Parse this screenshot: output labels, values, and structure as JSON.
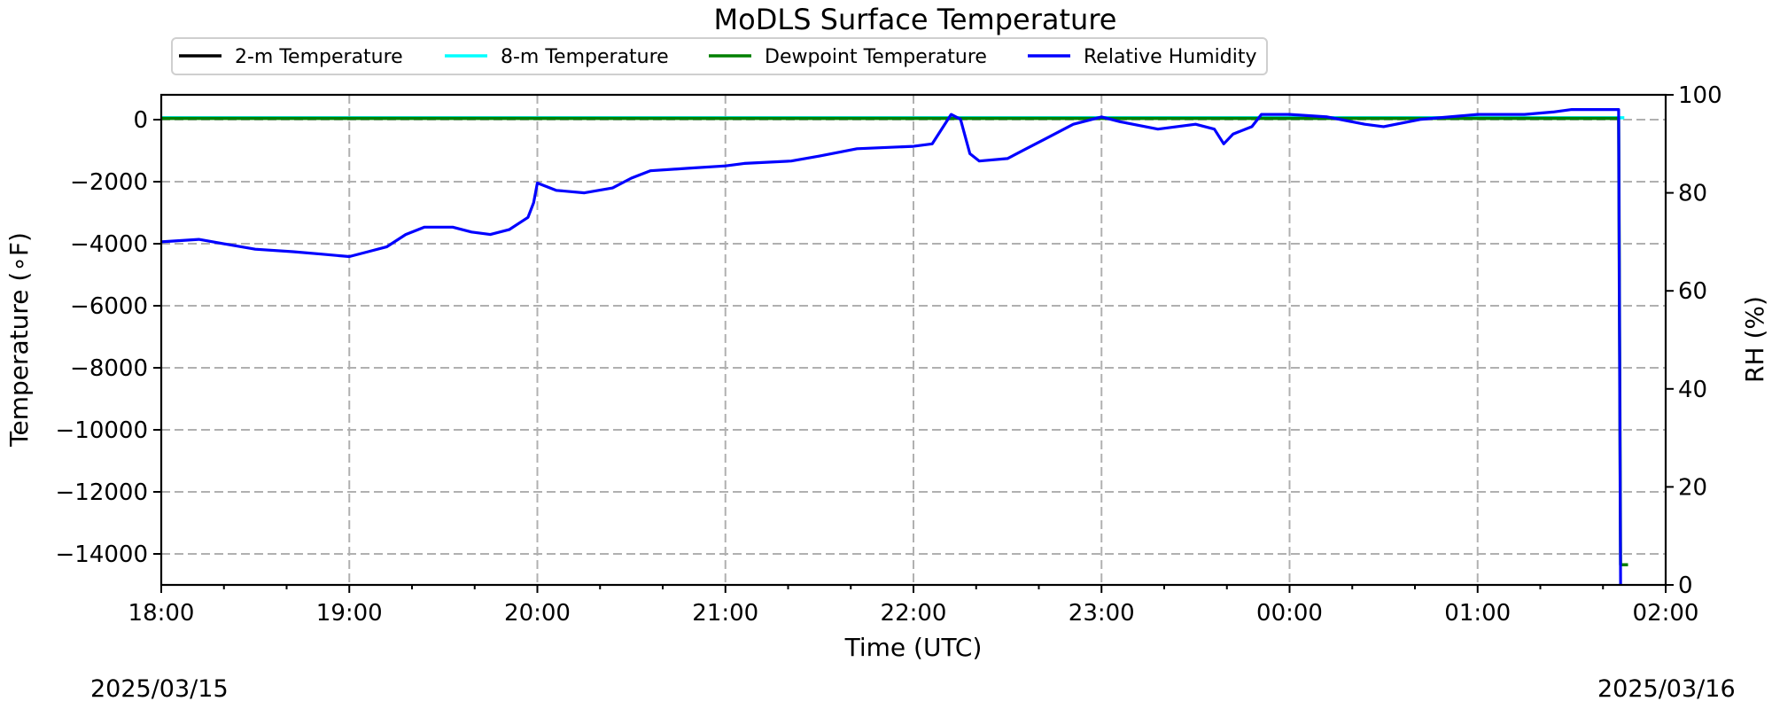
{
  "chart_data": {
    "type": "line",
    "title": "MoDLS Surface Temperature",
    "xlabel": "Time (UTC)",
    "ylabel": "Temperature (∘F)",
    "ylabel_right": "RH (%)",
    "date_left": "2025/03/15",
    "date_right": "2025/03/16",
    "x_ticks": [
      "18:00",
      "19:00",
      "20:00",
      "21:00",
      "22:00",
      "23:00",
      "00:00",
      "01:00",
      "02:00"
    ],
    "x_tick_hours": [
      0,
      1,
      2,
      3,
      4,
      5,
      6,
      7,
      8
    ],
    "xlim_hours_from_1800": [
      0,
      8
    ],
    "ylim_left": [
      -15000,
      800
    ],
    "yticks_left": [
      0,
      -2000,
      -4000,
      -6000,
      -8000,
      -10000,
      -12000,
      -14000
    ],
    "ylim_right": [
      0,
      100
    ],
    "yticks_right": [
      0,
      20,
      40,
      60,
      80,
      100
    ],
    "grid": true,
    "legend_position": "top",
    "series": [
      {
        "name": "2-m Temperature",
        "axis": "left",
        "color": "#000000",
        "points": [
          [
            0,
            60
          ],
          [
            7.75,
            60
          ]
        ]
      },
      {
        "name": "8-m Temperature",
        "axis": "left",
        "color": "#00ffff",
        "points": [
          [
            0,
            60
          ],
          [
            7.78,
            60
          ]
        ]
      },
      {
        "name": "Dewpoint Temperature",
        "axis": "left",
        "color": "#008000",
        "points": [
          [
            0,
            40
          ],
          [
            7.75,
            40
          ],
          [
            7.76,
            -14350
          ],
          [
            7.8,
            -14350
          ]
        ]
      },
      {
        "name": "Relative Humidity",
        "axis": "right",
        "color": "#0000ff",
        "points": [
          [
            0,
            70
          ],
          [
            0.2,
            70.5
          ],
          [
            0.35,
            69.5
          ],
          [
            0.5,
            68.5
          ],
          [
            0.7,
            68
          ],
          [
            0.85,
            67.5
          ],
          [
            1.0,
            67
          ],
          [
            1.1,
            68
          ],
          [
            1.2,
            69
          ],
          [
            1.3,
            71.5
          ],
          [
            1.4,
            73
          ],
          [
            1.55,
            73
          ],
          [
            1.65,
            72
          ],
          [
            1.75,
            71.5
          ],
          [
            1.85,
            72.5
          ],
          [
            1.95,
            75
          ],
          [
            1.98,
            78
          ],
          [
            2.0,
            82
          ],
          [
            2.1,
            80.5
          ],
          [
            2.25,
            80
          ],
          [
            2.4,
            81
          ],
          [
            2.5,
            83
          ],
          [
            2.6,
            84.5
          ],
          [
            2.8,
            85
          ],
          [
            3.0,
            85.5
          ],
          [
            3.1,
            86
          ],
          [
            3.35,
            86.5
          ],
          [
            3.5,
            87.5
          ],
          [
            3.7,
            89
          ],
          [
            4.0,
            89.5
          ],
          [
            4.1,
            90
          ],
          [
            4.2,
            96
          ],
          [
            4.25,
            95
          ],
          [
            4.3,
            88
          ],
          [
            4.35,
            86.5
          ],
          [
            4.5,
            87
          ],
          [
            4.6,
            89
          ],
          [
            4.7,
            91
          ],
          [
            4.85,
            94
          ],
          [
            5.0,
            95.5
          ],
          [
            5.1,
            94.5
          ],
          [
            5.3,
            93
          ],
          [
            5.5,
            94
          ],
          [
            5.6,
            93
          ],
          [
            5.65,
            90
          ],
          [
            5.7,
            92
          ],
          [
            5.8,
            93.5
          ],
          [
            5.85,
            96
          ],
          [
            6.0,
            96
          ],
          [
            6.2,
            95.5
          ],
          [
            6.4,
            94
          ],
          [
            6.5,
            93.5
          ],
          [
            6.7,
            95
          ],
          [
            7.0,
            96
          ],
          [
            7.25,
            96
          ],
          [
            7.4,
            96.5
          ],
          [
            7.5,
            97
          ],
          [
            7.6,
            97
          ],
          [
            7.74,
            97
          ],
          [
            7.75,
            97
          ],
          [
            7.76,
            0
          ]
        ]
      }
    ]
  }
}
